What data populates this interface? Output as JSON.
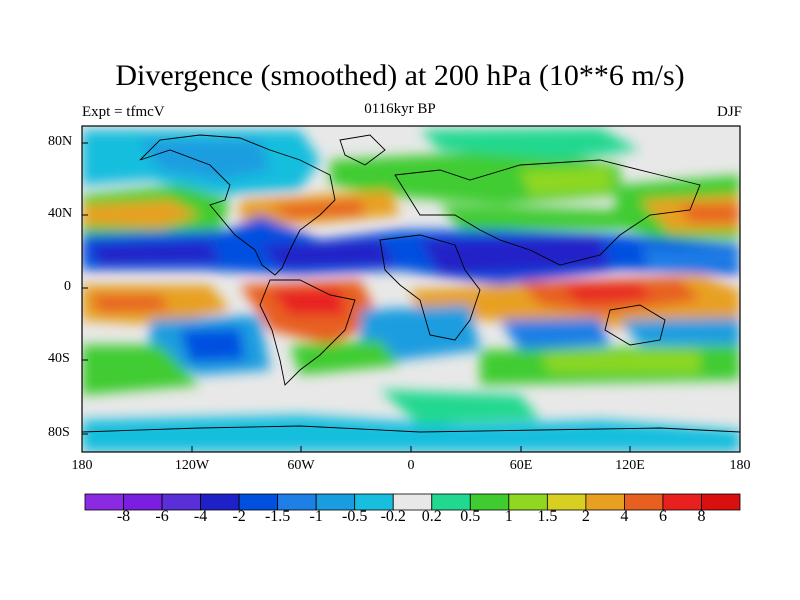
{
  "title": "Divergence (smoothed) at 200 hPa (10**6 m/s)",
  "subtitle_left": "Expt = tfmcV",
  "subtitle_center": "0116kyr BP",
  "subtitle_right": "DJF",
  "lat_labels": [
    "80N",
    "40N",
    "0",
    "40S",
    "80S"
  ],
  "lon_labels": [
    "180",
    "120W",
    "60W",
    "0",
    "60E",
    "120E",
    "180"
  ],
  "colorbar": {
    "labels": [
      "-8",
      "-6",
      "-4",
      "-2",
      "-1.5",
      "-1",
      "-0.5",
      "-0.2",
      "0.2",
      "0.5",
      "1",
      "1.5",
      "2",
      "4",
      "6",
      "8"
    ],
    "colors": [
      "#8a2be2",
      "#7a1fe0",
      "#5a2fd8",
      "#2020c8",
      "#0050e0",
      "#1e7fe6",
      "#1a9de0",
      "#18bede",
      "#e8e8e8",
      "#20d890",
      "#40cc30",
      "#90d820",
      "#d8d020",
      "#e8a020",
      "#e86020",
      "#e82020",
      "#d81010"
    ]
  }
}
